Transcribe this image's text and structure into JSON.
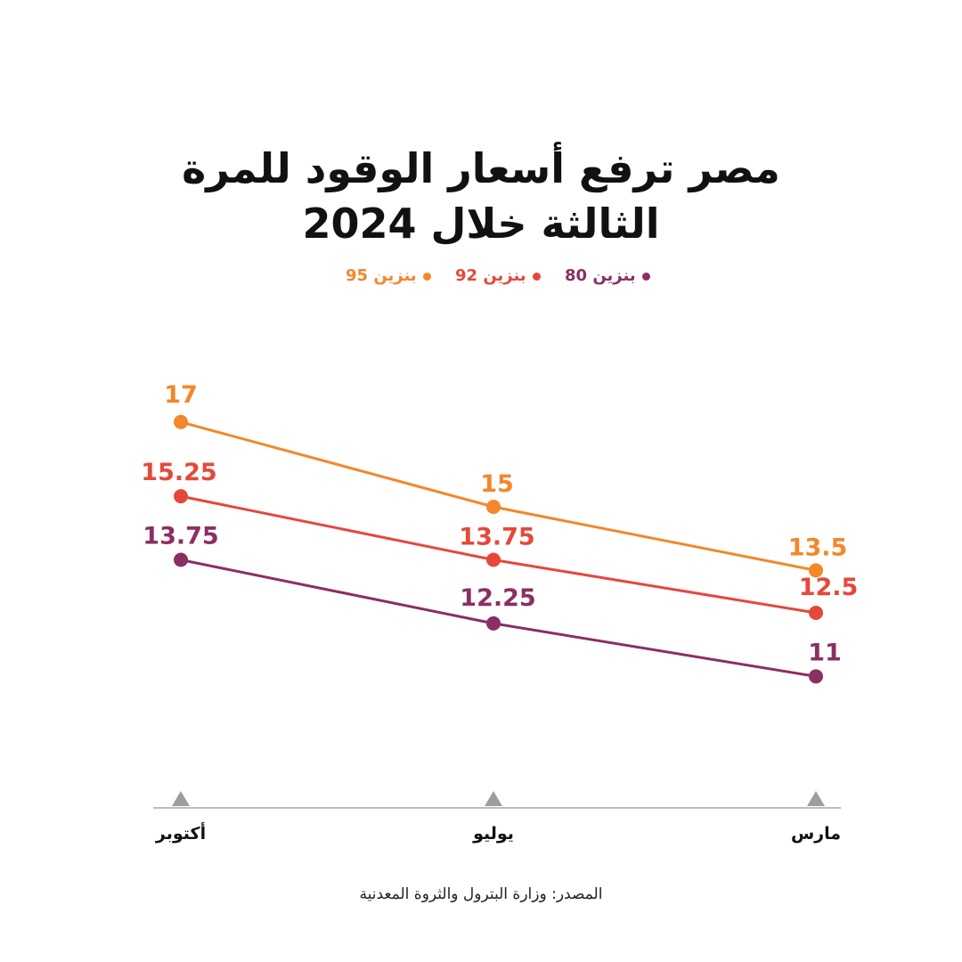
{
  "title_lines": [
    "مصر ترفع أسعار الوقود للمرة",
    "الثالثة خلال 2024"
  ],
  "source": "المصدر: وزارة البترول والثروة المعدنية",
  "colors": {
    "gas95": "#F3872A",
    "gas92": "#E5483A",
    "gas80": "#8B2F62",
    "axis": "#BDBDBD",
    "tick_marker": "#9E9E9E",
    "text": "#111111"
  },
  "chart_data": {
    "type": "line",
    "categories": [
      "أكتوبر",
      "يوليو",
      "مارس"
    ],
    "ylim": [
      10,
      17.5
    ],
    "grid": false,
    "legend_position": "top-center",
    "series": [
      {
        "key": "gas95",
        "name": "بنزين 95",
        "values": [
          17,
          15,
          13.5
        ],
        "labels": [
          "17",
          "15",
          "13.5"
        ]
      },
      {
        "key": "gas92",
        "name": "بنزين 92",
        "values": [
          15.25,
          13.75,
          12.5
        ],
        "labels": [
          "15.25",
          "13.75",
          "12.5"
        ]
      },
      {
        "key": "gas80",
        "name": "بنزين 80",
        "values": [
          13.75,
          12.25,
          11
        ],
        "labels": [
          "13.75",
          "12.25",
          "11"
        ]
      }
    ]
  }
}
